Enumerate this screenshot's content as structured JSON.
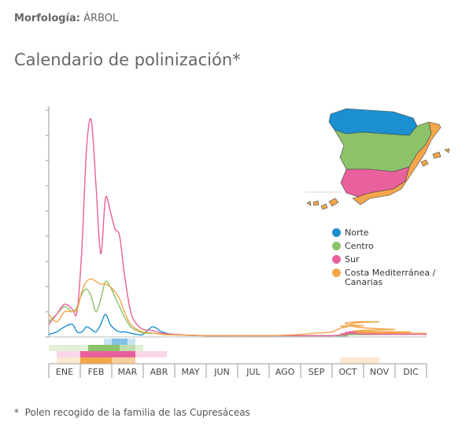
{
  "header": {
    "label": "Morfología:",
    "value": "ÁRBOL"
  },
  "chart_data": {
    "type": "line",
    "title": "Calendario de polinización*",
    "footnote": "*  Polen recogido de la familia de las Cupresáceas",
    "x": [
      0,
      0.25,
      0.5,
      0.75,
      0.9,
      1.05,
      1.2,
      1.35,
      1.5,
      1.65,
      1.8,
      1.95,
      2.1,
      2.25,
      2.4,
      2.6,
      2.8,
      3,
      3.3,
      3.6,
      4,
      5,
      6,
      7,
      8,
      8.5,
      9,
      9.5,
      10,
      10.5,
      11,
      11.5,
      12
    ],
    "xlim": [
      0,
      12
    ],
    "xticks": [
      {
        "value": 0.5,
        "label": "ENE"
      },
      {
        "value": 1.5,
        "label": "FEB"
      },
      {
        "value": 2.5,
        "label": "MAR"
      },
      {
        "value": 3.5,
        "label": "ABR"
      },
      {
        "value": 4.5,
        "label": "MAY"
      },
      {
        "value": 5.5,
        "label": "JUN"
      },
      {
        "value": 6.5,
        "label": "JUL"
      },
      {
        "value": 7.5,
        "label": "AGO"
      },
      {
        "value": 8.5,
        "label": "SEP"
      },
      {
        "value": 9.5,
        "label": "OCT"
      },
      {
        "value": 10.5,
        "label": "NOV"
      },
      {
        "value": 11.5,
        "label": "DIC"
      }
    ],
    "ylim": [
      0,
      9
    ],
    "yticks": [
      0,
      1,
      2,
      3,
      4,
      5,
      6,
      7,
      8,
      9
    ],
    "series": [
      {
        "name": "Norte",
        "color": "#1b8fcf",
        "values": [
          0.1,
          0.2,
          0.4,
          0.5,
          0.2,
          0.2,
          0.4,
          0.3,
          0.2,
          0.5,
          0.9,
          0.5,
          0.3,
          0.2,
          0.2,
          0.15,
          0.1,
          0.1,
          0.4,
          0.2,
          0.1,
          0.05,
          0.05,
          0.05,
          0.05,
          0.05,
          0.05,
          0.05,
          0.1,
          0.1,
          0.15,
          0.1,
          0.1
        ],
        "calendar": [
          0,
          0,
          0,
          0,
          0,
          0,
          0,
          1,
          2,
          2,
          1,
          0,
          0,
          0,
          0,
          0,
          0,
          0,
          0,
          0,
          0,
          0,
          0,
          0,
          0,
          0,
          0,
          0,
          0,
          0,
          0,
          0,
          0,
          0,
          0,
          0,
          0,
          0,
          0,
          0,
          0,
          0,
          0,
          0,
          0,
          0,
          0,
          0
        ]
      },
      {
        "name": "Centro",
        "color": "#8cc26a",
        "values": [
          0.6,
          0.9,
          1.2,
          1.0,
          1.2,
          1.7,
          1.9,
          1.6,
          1.0,
          1.5,
          2.2,
          2.0,
          1.6,
          1.2,
          0.8,
          0.4,
          0.25,
          0.15,
          0.15,
          0.1,
          0.08,
          0.05,
          0.05,
          0.05,
          0.05,
          0.05,
          0.05,
          0.05,
          0.1,
          0.1,
          0.2,
          0.15,
          0.1
        ],
        "calendar": [
          1,
          1,
          1,
          1,
          1,
          3,
          3,
          3,
          3,
          2,
          2,
          1,
          0,
          0,
          0,
          0,
          0,
          0,
          0,
          0,
          0,
          0,
          0,
          0,
          0,
          0,
          0,
          0,
          0,
          0,
          0,
          0,
          0,
          0,
          0,
          0,
          0,
          0,
          0,
          0,
          0,
          0,
          0,
          0,
          0,
          0,
          0,
          0
        ]
      },
      {
        "name": "Sur",
        "color": "#e8609c",
        "values": [
          0.5,
          0.9,
          1.3,
          1.1,
          1.0,
          3.5,
          7.5,
          8.6,
          6.0,
          3.3,
          5.5,
          5.0,
          4.3,
          4.0,
          2.5,
          1.0,
          0.5,
          0.3,
          0.25,
          0.15,
          0.1,
          0.05,
          0.05,
          0.05,
          0.05,
          0.05,
          0.05,
          0.1,
          0.15,
          0.2,
          0.2,
          0.15,
          0.1
        ],
        "calendar": [
          0,
          1,
          1,
          1,
          3,
          3,
          3,
          3,
          3,
          3,
          3,
          1,
          1,
          1,
          1,
          0,
          0,
          0,
          0,
          0,
          0,
          0,
          0,
          0,
          0,
          0,
          0,
          0,
          0,
          0,
          0,
          0,
          0,
          0,
          0,
          0,
          0,
          0,
          0,
          0,
          0,
          0,
          0,
          0,
          0,
          0,
          0,
          0
        ]
      },
      {
        "name": "Costa Mediterránea / Canarias",
        "color": "#f3a64a",
        "values": [
          0.9,
          0.6,
          1.0,
          1.0,
          1.1,
          1.8,
          2.2,
          2.3,
          2.2,
          2.1,
          2.1,
          2.0,
          1.8,
          1.5,
          1.0,
          0.5,
          0.3,
          0.2,
          0.15,
          0.1,
          0.08,
          0.05,
          0.05,
          0.05,
          0.1,
          0.15,
          0.2,
          0.4,
          0.45,
          0.6,
          0.3,
          0.2,
          0.15
        ],
        "calendar": [
          0,
          1,
          1,
          1,
          3,
          3,
          3,
          3,
          2,
          2,
          2,
          0,
          0,
          0,
          0,
          0,
          0,
          0,
          0,
          0,
          0,
          0,
          0,
          0,
          0,
          0,
          0,
          0,
          0,
          0,
          0,
          0,
          0,
          0,
          0,
          0,
          0,
          1,
          1,
          1,
          1,
          1,
          0,
          0,
          0,
          0,
          0,
          0
        ]
      }
    ]
  }
}
